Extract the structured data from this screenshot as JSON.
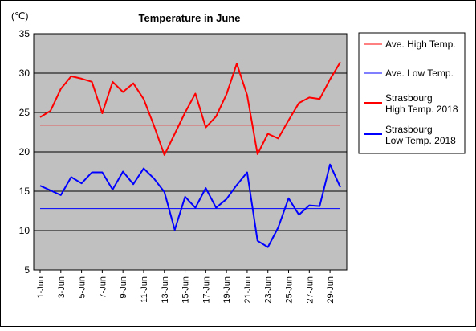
{
  "chart_data": {
    "type": "line",
    "title": "Temperature in June",
    "ylabel": "(℃)",
    "xlabel": "",
    "ylim": [
      5,
      35
    ],
    "yticks": [
      5,
      10,
      15,
      20,
      25,
      30,
      35
    ],
    "x": [
      1,
      2,
      3,
      4,
      5,
      6,
      7,
      8,
      9,
      10,
      11,
      12,
      13,
      14,
      15,
      16,
      17,
      18,
      19,
      20,
      21,
      22,
      23,
      24,
      25,
      26,
      27,
      28,
      29,
      30
    ],
    "xtick_labels": [
      "1-Jun",
      "3-Jun",
      "5-Jun",
      "7-Jun",
      "9-Jun",
      "11-Jun",
      "13-Jun",
      "15-Jun",
      "17-Jun",
      "19-Jun",
      "21-Jun",
      "23-Jun",
      "25-Jun",
      "27-Jun",
      "29-Jun"
    ],
    "xtick_positions": [
      1,
      3,
      5,
      7,
      9,
      11,
      13,
      15,
      17,
      19,
      21,
      23,
      25,
      27,
      29
    ],
    "grid": "horizontal",
    "legend_placement": "right",
    "series": [
      {
        "name": "Ave. High Temp.",
        "color": "#ff0000",
        "style": "thin",
        "values": [
          23.4,
          23.4,
          23.4,
          23.4,
          23.4,
          23.4,
          23.4,
          23.4,
          23.4,
          23.4,
          23.4,
          23.4,
          23.4,
          23.4,
          23.4,
          23.4,
          23.4,
          23.4,
          23.4,
          23.4,
          23.4,
          23.4,
          23.4,
          23.4,
          23.4,
          23.4,
          23.4,
          23.4,
          23.4,
          23.4
        ]
      },
      {
        "name": "Ave. Low Temp.",
        "color": "#0000ff",
        "style": "thin",
        "values": [
          12.8,
          12.8,
          12.8,
          12.8,
          12.8,
          12.8,
          12.8,
          12.8,
          12.8,
          12.8,
          12.8,
          12.8,
          12.8,
          12.8,
          12.8,
          12.8,
          12.8,
          12.8,
          12.8,
          12.8,
          12.8,
          12.8,
          12.8,
          12.8,
          12.8,
          12.8,
          12.8,
          12.8,
          12.8,
          12.8
        ]
      },
      {
        "name": "Strasbourg High Temp. 2018",
        "legend_lines": [
          "Strasbourg",
          "High Temp. 2018"
        ],
        "color": "#ff0000",
        "style": "thick",
        "values": [
          24.4,
          25.2,
          28.0,
          29.6,
          29.3,
          28.9,
          24.9,
          28.9,
          27.6,
          28.7,
          26.7,
          23.3,
          19.6,
          22.3,
          25.0,
          27.4,
          23.1,
          24.5,
          27.3,
          31.2,
          27.2,
          19.7,
          22.3,
          21.7,
          24.0,
          26.2,
          26.9,
          26.7,
          29.2,
          31.4
        ]
      },
      {
        "name": "Strasbourg Low Temp. 2018",
        "legend_lines": [
          "Strasbourg",
          "Low Temp. 2018"
        ],
        "color": "#0000ff",
        "style": "thick",
        "values": [
          15.7,
          15.1,
          14.5,
          16.8,
          16.0,
          17.4,
          17.4,
          15.2,
          17.5,
          15.9,
          17.9,
          16.6,
          14.9,
          10.1,
          14.3,
          12.9,
          15.4,
          12.9,
          14.0,
          15.8,
          17.4,
          8.7,
          7.9,
          10.4,
          14.1,
          12.0,
          13.2,
          13.1,
          18.4,
          15.5
        ]
      }
    ]
  }
}
